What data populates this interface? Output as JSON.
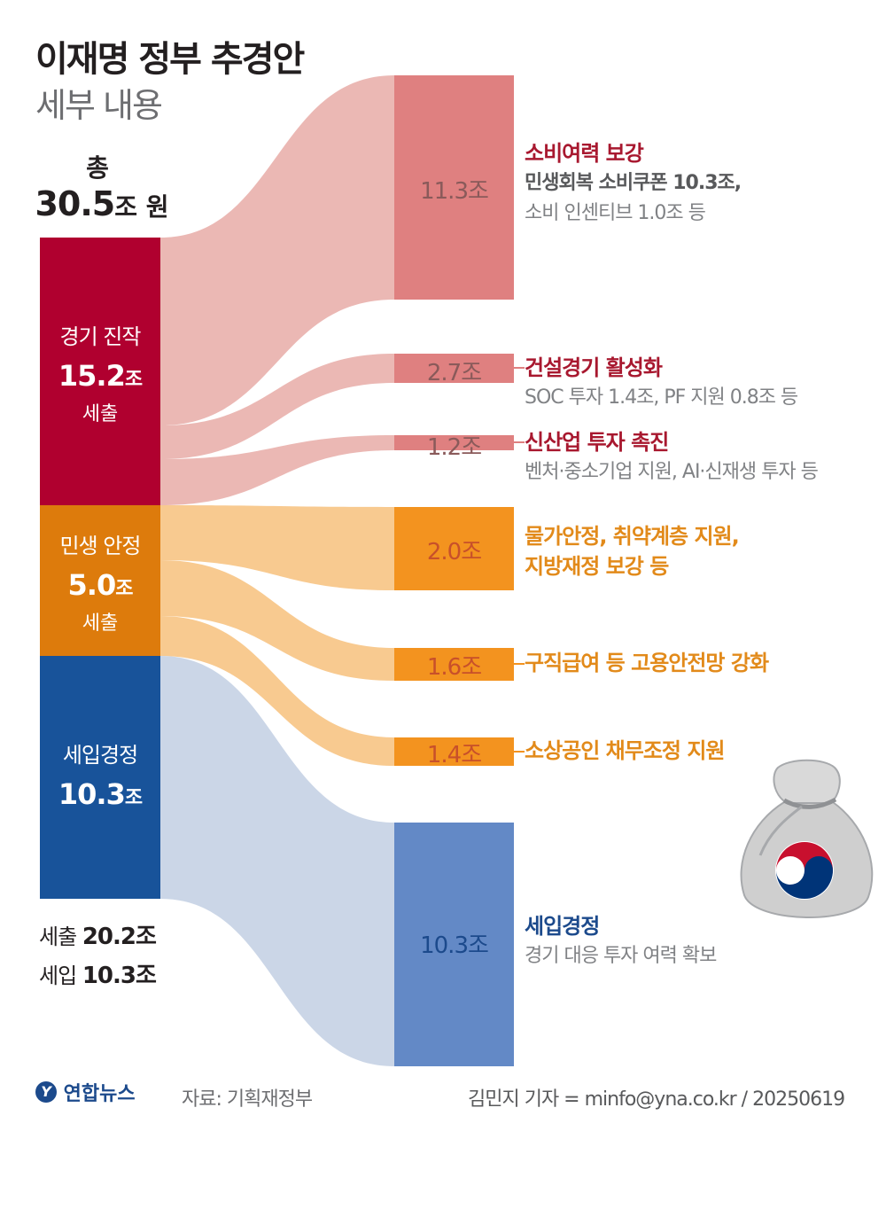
{
  "title": "이재명 정부 추경안",
  "subtitle": "세부 내용",
  "total": {
    "label": "총",
    "value": "30.5",
    "unit": "조 원"
  },
  "colors": {
    "red": "#b0002f",
    "red_target": "#df8080",
    "red_flow": "#ebb8b4",
    "orange": "#dd7b0c",
    "orange_target": "#f3931f",
    "orange_flow": "#f8ca90",
    "blue": "#18539a",
    "blue_target": "#6389c6",
    "blue_flow": "#cbd6e7"
  },
  "chart_data": {
    "type": "sankey",
    "title": "이재명 정부 추경안 세부 내용",
    "units": "조 원",
    "total": 30.5,
    "sources": [
      {
        "name": "경기 진작",
        "value": 15.2,
        "amount": "15.2",
        "unit": "조",
        "type": "세출"
      },
      {
        "name": "민생 안정",
        "value": 5.0,
        "amount": "5.0",
        "unit": "조",
        "type": "세출"
      },
      {
        "name": "세입경정",
        "value": 10.3,
        "amount": "10.3",
        "unit": "조",
        "type": ""
      }
    ],
    "targets": [
      {
        "source": 0,
        "value": 11.3,
        "label": "11.3조",
        "title": "소비여력 보강",
        "lines": [
          "민생회복 소비쿠폰 10.3조,",
          "소비 인센티브 1.0조 등"
        ]
      },
      {
        "source": 0,
        "value": 2.7,
        "label": "2.7조",
        "title": "건설경기 활성화",
        "lines": [
          "SOC 투자 1.4조, PF 지원 0.8조 등"
        ]
      },
      {
        "source": 0,
        "value": 1.2,
        "label": "1.2조",
        "title": "신산업 투자 촉진",
        "lines": [
          "벤처·중소기업 지원, AI·신재생 투자 등"
        ]
      },
      {
        "source": 1,
        "value": 2.0,
        "label": "2.0조",
        "title": "물가안정, 취약계층 지원,",
        "lines": [
          "지방재정 보강 등"
        ]
      },
      {
        "source": 1,
        "value": 1.6,
        "label": "1.6조",
        "title": "구직급여 등 고용안전망 강화",
        "lines": []
      },
      {
        "source": 1,
        "value": 1.4,
        "label": "1.4조",
        "title": "소상공인 채무조정 지원",
        "lines": []
      },
      {
        "source": 2,
        "value": 10.3,
        "label": "10.3조",
        "title": "세입경정",
        "lines": [
          "경기 대응 투자 여력 확보"
        ]
      }
    ]
  },
  "summary": [
    {
      "label": "세출",
      "value": "20.2조"
    },
    {
      "label": "세입",
      "value": "10.3조"
    }
  ],
  "footer": {
    "logo": "연합뉴스",
    "source": "자료: 기획재정부",
    "credit": "김민지 기자 = minfo@yna.co.kr / 20250619"
  }
}
